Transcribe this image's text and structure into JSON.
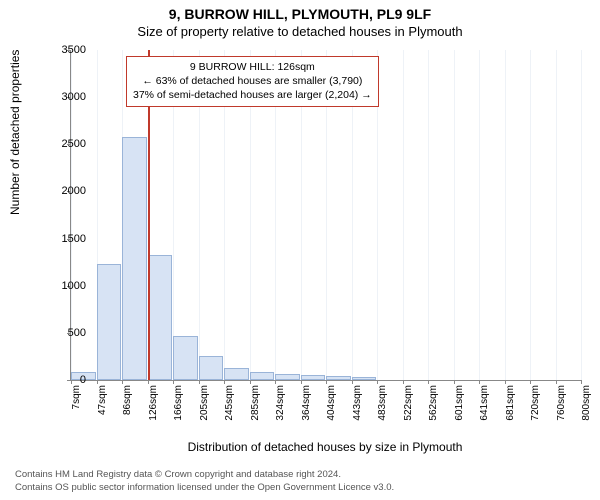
{
  "header": {
    "address": "9, BURROW HILL, PLYMOUTH, PL9 9LF",
    "subtitle": "Size of property relative to detached houses in Plymouth"
  },
  "chart": {
    "type": "histogram",
    "ylabel": "Number of detached properties",
    "xlabel": "Distribution of detached houses by size in Plymouth",
    "ylim": [
      0,
      3500
    ],
    "ytick_step": 500,
    "yticks": [
      0,
      500,
      1000,
      1500,
      2000,
      2500,
      3000,
      3500
    ],
    "xticks": [
      "7sqm",
      "47sqm",
      "86sqm",
      "126sqm",
      "166sqm",
      "205sqm",
      "245sqm",
      "285sqm",
      "324sqm",
      "364sqm",
      "404sqm",
      "443sqm",
      "483sqm",
      "522sqm",
      "562sqm",
      "601sqm",
      "641sqm",
      "681sqm",
      "720sqm",
      "760sqm",
      "800sqm"
    ],
    "values": [
      80,
      1230,
      2580,
      1330,
      470,
      250,
      130,
      90,
      60,
      50,
      40,
      30,
      0,
      0,
      0,
      0,
      0,
      0,
      0,
      0
    ],
    "bar_fill": "#d7e3f4",
    "bar_stroke": "#9ab4d8",
    "grid_color": "#eef2f7",
    "axis_color": "#888888",
    "bar_width_ratio": 0.98,
    "marker": {
      "x_value": "126sqm",
      "color": "#c0392b"
    },
    "annotation": {
      "line1": "9 BURROW HILL: 126sqm",
      "line2": "← 63% of detached houses are smaller (3,790)",
      "line3": "37% of semi-detached houses are larger (2,204) →",
      "border_color": "#c0392b",
      "background": "#ffffff",
      "fontsize": 10.5
    }
  },
  "footer": {
    "line1": "Contains HM Land Registry data © Crown copyright and database right 2024.",
    "line2": "Contains OS public sector information licensed under the Open Government Licence v3.0."
  }
}
